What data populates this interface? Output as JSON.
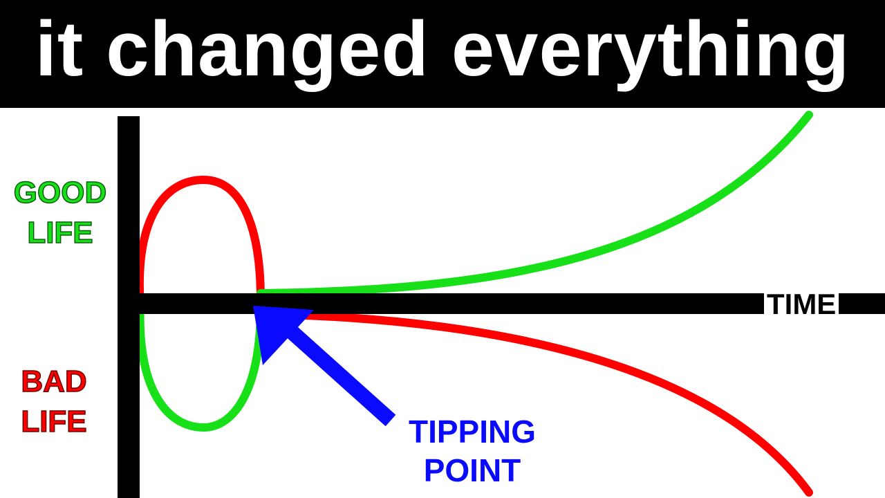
{
  "title": "it changed everything",
  "labels": {
    "good_line1": "GOOD",
    "good_line2": "LIFE",
    "bad_line1": "BAD",
    "bad_line2": "LIFE",
    "time": "TIME",
    "tipping_line1": "TIPPING",
    "tipping_line2": "POINT"
  },
  "colors": {
    "good": "#18e018",
    "bad": "#ff0000",
    "tipping": "#0a0aff",
    "axis": "#000000",
    "title_bg": "#000000",
    "title_text": "#ffffff"
  }
}
